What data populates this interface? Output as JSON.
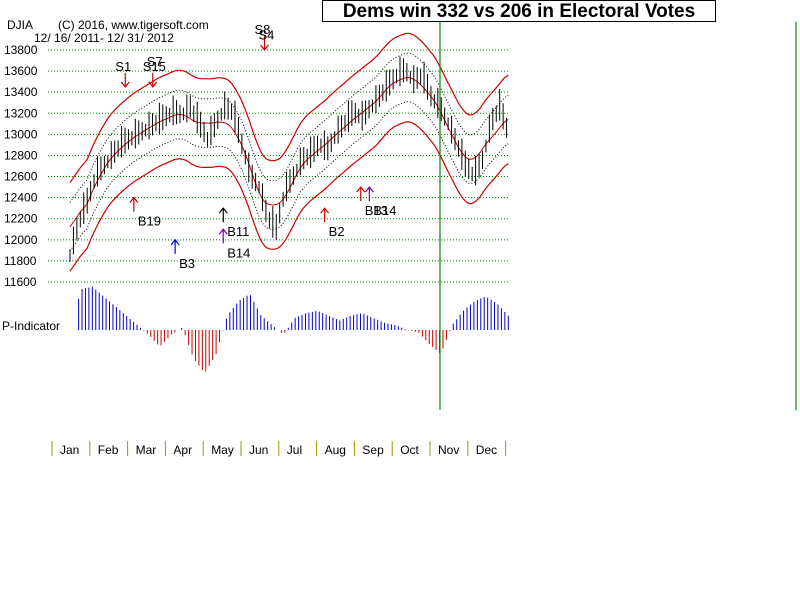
{
  "header": {
    "ticker": "DJIA",
    "copyright": "(C) 2016, www.tigersoft.com",
    "date_range": "12/ 16/ 2011- 12/ 31/ 2012",
    "title": "Dems win 332 vs 206 in Electoral Votes"
  },
  "colors": {
    "band": "#cc0000",
    "inner_band": "#000000",
    "grid": "#008800",
    "pos_bar": "#0000cc",
    "neg_bar": "#cc0000",
    "vline": "#008800",
    "month_tick": "#999900"
  },
  "chart_data": {
    "type": "line",
    "title": "Dems win 332 vs 206 in Electoral Votes",
    "ylabel": "DJIA",
    "ylim": [
      11600,
      13800
    ],
    "y_ticks": [
      11600,
      11800,
      12000,
      12200,
      12400,
      12600,
      12800,
      13000,
      13200,
      13400,
      13600,
      13800
    ],
    "months": [
      "Jan",
      "Feb",
      "Mar",
      "Apr",
      "May",
      "Jun",
      "Jul",
      "Aug",
      "Sep",
      "Oct",
      "Nov",
      "Dec"
    ],
    "price_series": {
      "name": "DJIA",
      "x": [
        0,
        5,
        10,
        15,
        20,
        25,
        30,
        35,
        40,
        45,
        50,
        55,
        60,
        65,
        70,
        75,
        80,
        85,
        90,
        95,
        100,
        105,
        110,
        115,
        120,
        125,
        130,
        135,
        140,
        145,
        150,
        155,
        160,
        165,
        170,
        175,
        180,
        185,
        190,
        195,
        200,
        205,
        210,
        215,
        220,
        225,
        230,
        235,
        240,
        245,
        250,
        255
      ],
      "values": [
        11850,
        12150,
        12350,
        12600,
        12700,
        12800,
        12900,
        12950,
        13000,
        13050,
        13100,
        13150,
        13200,
        13180,
        13250,
        13100,
        12950,
        13100,
        13250,
        13200,
        12900,
        12600,
        12500,
        12200,
        12100,
        12450,
        12600,
        12750,
        12800,
        12900,
        12850,
        13000,
        13100,
        13200,
        13150,
        13250,
        13350,
        13450,
        13550,
        13600,
        13500,
        13550,
        13350,
        13250,
        13100,
        12900,
        12700,
        12600,
        12750,
        13100,
        13250,
        13000
      ]
    },
    "indicator": {
      "name": "P-Indicator",
      "values": [
        0.0,
        0.85,
        0.9,
        0.7,
        0.5,
        0.3,
        0.1,
        -0.1,
        -0.35,
        -0.1,
        0.05,
        -0.6,
        -0.9,
        -0.5,
        0.3,
        0.6,
        0.75,
        0.3,
        0.1,
        -0.1,
        0.25,
        0.35,
        0.4,
        0.3,
        0.2,
        0.3,
        0.35,
        0.25,
        0.15,
        0.1,
        0.0,
        -0.05,
        -0.3,
        -0.5,
        0.1,
        0.4,
        0.6,
        0.7,
        0.55,
        0.3
      ]
    },
    "signals": [
      {
        "label": "S1",
        "x": 31,
        "y": 13450,
        "dir": "down",
        "color": "red"
      },
      {
        "label": "S15",
        "x": 47,
        "y": 13450,
        "dir": "down",
        "color": "red"
      },
      {
        "label": "S7",
        "x": 47,
        "y": 13650,
        "dir": "none",
        "color": "red"
      },
      {
        "label": "B19",
        "x": 36,
        "y": 12400,
        "dir": "up",
        "color": "red"
      },
      {
        "label": "B3",
        "x": 60,
        "y": 12000,
        "dir": "up",
        "color": "blue"
      },
      {
        "label": "B11",
        "x": 88,
        "y": 12300,
        "dir": "up",
        "color": "black"
      },
      {
        "label": "B14",
        "x": 88,
        "y": 12100,
        "dir": "up",
        "color": "purple"
      },
      {
        "label": "S8",
        "x": 112,
        "y": 13800,
        "dir": "down",
        "color": "red"
      },
      {
        "label": "S4",
        "x": 112,
        "y": 13900,
        "dir": "none",
        "color": "red"
      },
      {
        "label": "B2",
        "x": 147,
        "y": 12300,
        "dir": "up",
        "color": "red"
      },
      {
        "label": "B13",
        "x": 168,
        "y": 12500,
        "dir": "up",
        "color": "red"
      },
      {
        "label": "B14",
        "x": 173,
        "y": 12500,
        "dir": "up",
        "color": "purple"
      }
    ],
    "legend": "none"
  }
}
